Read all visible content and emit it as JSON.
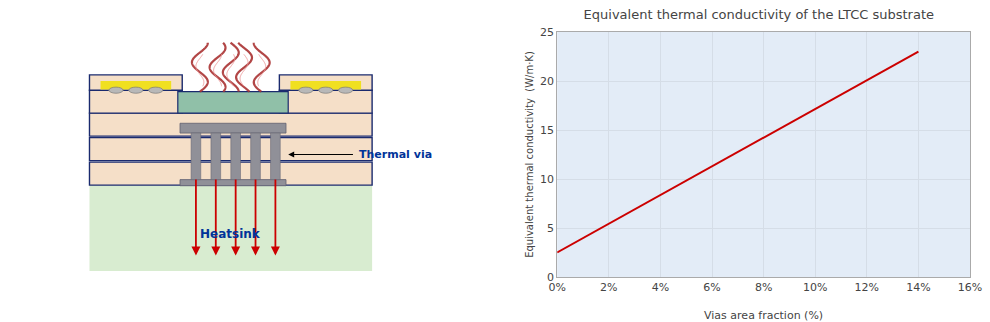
{
  "chart_data": {
    "type": "line",
    "title": "Equivalent thermal conductivity of the LTCC substrate",
    "xlabel": "Vias area fraction (%)",
    "ylabel": "Equivalent thermal conductivity  (W/m·K)",
    "x": [
      0,
      14
    ],
    "series": [
      {
        "values": [
          2.5,
          23
        ],
        "color": "#cc0000"
      }
    ],
    "xlim": [
      0,
      16
    ],
    "xticks": [
      {
        "value": 0,
        "label": "0%"
      },
      {
        "value": 2,
        "label": "2%"
      },
      {
        "value": 4,
        "label": "4%"
      },
      {
        "value": 6,
        "label": "6%"
      },
      {
        "value": 8,
        "label": "8%"
      },
      {
        "value": 10,
        "label": "10%"
      },
      {
        "value": 12,
        "label": "12%"
      },
      {
        "value": 14,
        "label": "14%"
      },
      {
        "value": 16,
        "label": "16%"
      }
    ],
    "ylim": [
      0,
      25
    ],
    "yticks": [
      0,
      5,
      10,
      15,
      20,
      25
    ],
    "grid": true,
    "annotations": [
      "Thermal via",
      "Heatsink"
    ]
  }
}
